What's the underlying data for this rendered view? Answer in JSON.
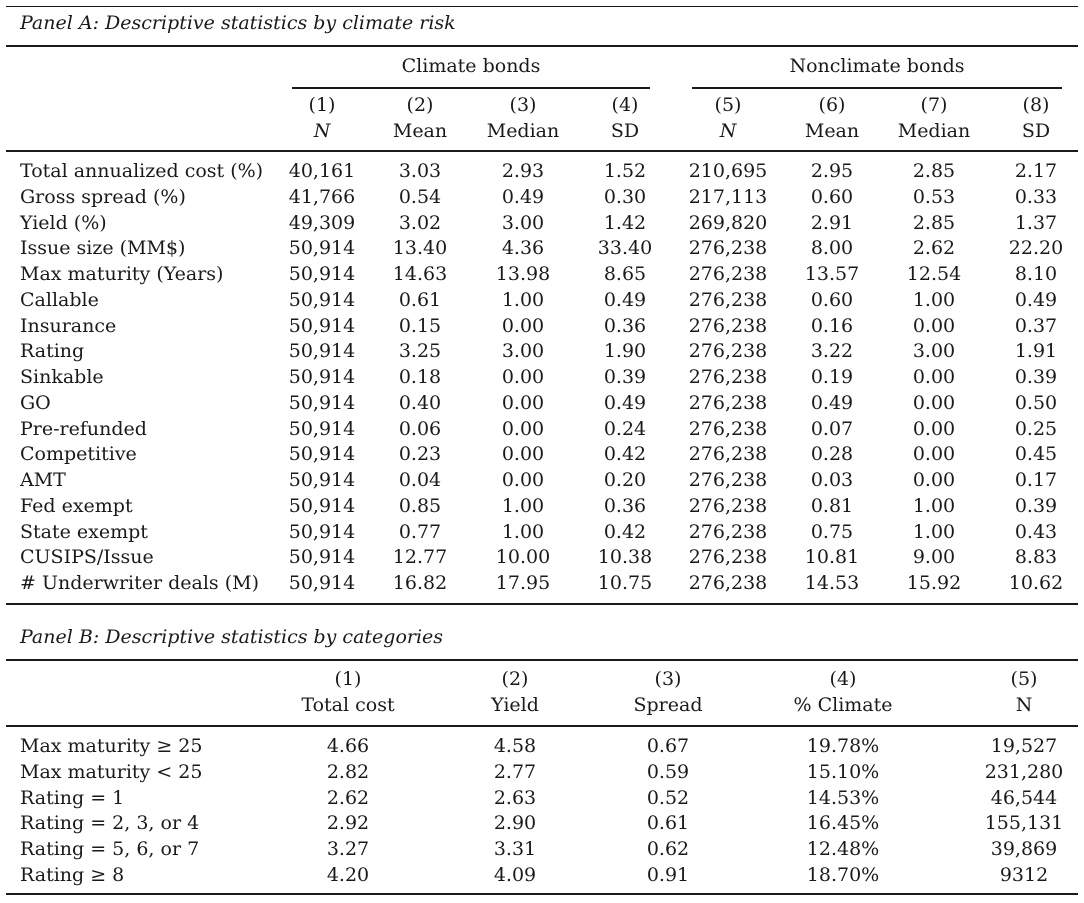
{
  "panelA": {
    "title": "Panel A: Descriptive statistics by climate risk",
    "group_climate": "Climate bonds",
    "group_nonclimate": "Nonclimate bonds",
    "col_numbers": [
      "(1)",
      "(2)",
      "(3)",
      "(4)",
      "(5)",
      "(6)",
      "(7)",
      "(8)"
    ],
    "col_labels": [
      "N",
      "Mean",
      "Median",
      "SD",
      "N",
      "Mean",
      "Median",
      "SD"
    ],
    "rows": [
      {
        "label": "Total annualized cost (%)",
        "values": [
          "40,161",
          "3.03",
          "2.93",
          "1.52",
          "210,695",
          "2.95",
          "2.85",
          "2.17"
        ]
      },
      {
        "label": "Gross spread (%)",
        "values": [
          "41,766",
          "0.54",
          "0.49",
          "0.30",
          "217,113",
          "0.60",
          "0.53",
          "0.33"
        ]
      },
      {
        "label": "Yield (%)",
        "values": [
          "49,309",
          "3.02",
          "3.00",
          "1.42",
          "269,820",
          "2.91",
          "2.85",
          "1.37"
        ]
      },
      {
        "label": "Issue size (MM$)",
        "values": [
          "50,914",
          "13.40",
          "4.36",
          "33.40",
          "276,238",
          "8.00",
          "2.62",
          "22.20"
        ]
      },
      {
        "label": "Max maturity (Years)",
        "values": [
          "50,914",
          "14.63",
          "13.98",
          "8.65",
          "276,238",
          "13.57",
          "12.54",
          "8.10"
        ]
      },
      {
        "label": "Callable",
        "values": [
          "50,914",
          "0.61",
          "1.00",
          "0.49",
          "276,238",
          "0.60",
          "1.00",
          "0.49"
        ]
      },
      {
        "label": "Insurance",
        "values": [
          "50,914",
          "0.15",
          "0.00",
          "0.36",
          "276,238",
          "0.16",
          "0.00",
          "0.37"
        ]
      },
      {
        "label": "Rating",
        "values": [
          "50,914",
          "3.25",
          "3.00",
          "1.90",
          "276,238",
          "3.22",
          "3.00",
          "1.91"
        ]
      },
      {
        "label": "Sinkable",
        "values": [
          "50,914",
          "0.18",
          "0.00",
          "0.39",
          "276,238",
          "0.19",
          "0.00",
          "0.39"
        ]
      },
      {
        "label": "GO",
        "values": [
          "50,914",
          "0.40",
          "0.00",
          "0.49",
          "276,238",
          "0.49",
          "0.00",
          "0.50"
        ]
      },
      {
        "label": "Pre-refunded",
        "values": [
          "50,914",
          "0.06",
          "0.00",
          "0.24",
          "276,238",
          "0.07",
          "0.00",
          "0.25"
        ]
      },
      {
        "label": "Competitive",
        "values": [
          "50,914",
          "0.23",
          "0.00",
          "0.42",
          "276,238",
          "0.28",
          "0.00",
          "0.45"
        ]
      },
      {
        "label": "AMT",
        "values": [
          "50,914",
          "0.04",
          "0.00",
          "0.20",
          "276,238",
          "0.03",
          "0.00",
          "0.17"
        ]
      },
      {
        "label": "Fed exempt",
        "values": [
          "50,914",
          "0.85",
          "1.00",
          "0.36",
          "276,238",
          "0.81",
          "1.00",
          "0.39"
        ]
      },
      {
        "label": "State exempt",
        "values": [
          "50,914",
          "0.77",
          "1.00",
          "0.42",
          "276,238",
          "0.75",
          "1.00",
          "0.43"
        ]
      },
      {
        "label": "CUSIPS/Issue",
        "values": [
          "50,914",
          "12.77",
          "10.00",
          "10.38",
          "276,238",
          "10.81",
          "9.00",
          "8.83"
        ]
      },
      {
        "label": "# Underwriter deals (M)",
        "values": [
          "50,914",
          "16.82",
          "17.95",
          "10.75",
          "276,238",
          "14.53",
          "15.92",
          "10.62"
        ]
      }
    ]
  },
  "panelB": {
    "title": "Panel B: Descriptive statistics by categories",
    "col_numbers": [
      "(1)",
      "(2)",
      "(3)",
      "(4)",
      "(5)"
    ],
    "col_labels": [
      "Total cost",
      "Yield",
      "Spread",
      "% Climate",
      "N"
    ],
    "rows": [
      {
        "label": "Max maturity ≥ 25",
        "values": [
          "4.66",
          "4.58",
          "0.67",
          "19.78%",
          "19,527"
        ]
      },
      {
        "label": "Max maturity < 25",
        "values": [
          "2.82",
          "2.77",
          "0.59",
          "15.10%",
          "231,280"
        ]
      },
      {
        "label": "Rating = 1",
        "values": [
          "2.62",
          "2.63",
          "0.52",
          "14.53%",
          "46,544"
        ]
      },
      {
        "label": "Rating = 2, 3, or 4",
        "values": [
          "2.92",
          "2.90",
          "0.61",
          "16.45%",
          "155,131"
        ]
      },
      {
        "label": "Rating = 5, 6, or 7",
        "values": [
          "3.27",
          "3.31",
          "0.62",
          "12.48%",
          "39,869"
        ]
      },
      {
        "label": "Rating ≥ 8",
        "values": [
          "4.20",
          "4.09",
          "0.91",
          "18.70%",
          "9312"
        ]
      }
    ]
  }
}
